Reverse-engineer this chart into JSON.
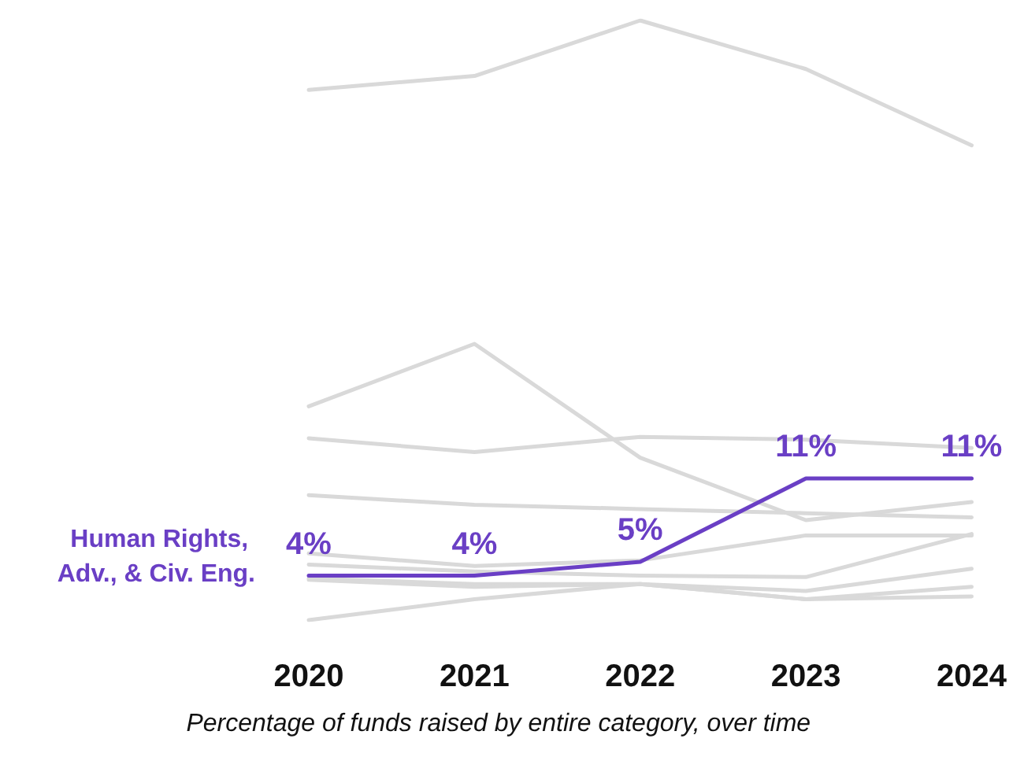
{
  "chart_data": {
    "type": "line",
    "xlabel": "Percentage of funds raised by entire category, over time",
    "categories": [
      "2020",
      "2021",
      "2022",
      "2023",
      "2024"
    ],
    "tick_labels": "x",
    "grid": false,
    "legend": false,
    "marker": "none",
    "line_style": "solid",
    "series": [
      {
        "color": "#d9d9d9",
        "values": [
          39,
          40,
          44,
          40.5,
          35
        ]
      },
      {
        "color": "#d9d9d9",
        "values": [
          16.2,
          20.7,
          12.5,
          8,
          9.3
        ]
      },
      {
        "color": "#d9d9d9",
        "values": [
          13.9,
          12.9,
          14,
          13.8,
          13.2
        ]
      },
      {
        "color": "#d9d9d9",
        "values": [
          9.8,
          9.1,
          8.8,
          8.5,
          8.2
        ]
      },
      {
        "color": "#d9d9d9",
        "values": [
          5.6,
          4.7,
          5.1,
          6.9,
          6.9
        ]
      },
      {
        "color": "#d9d9d9",
        "values": [
          4.8,
          4.3,
          4,
          3.9,
          7
        ]
      },
      {
        "color": "#d9d9d9",
        "values": [
          3.8,
          3.4,
          3.4,
          2.9,
          4.5
        ]
      },
      {
        "color": "#d9d9d9",
        "values": [
          3.7,
          3.2,
          3.4,
          2.3,
          3.2
        ]
      },
      {
        "color": "#d9d9d9",
        "values": [
          0.8,
          2.3,
          3.4,
          2.3,
          2.5
        ]
      },
      {
        "name": "Human Rights, Adv., & Civ. Eng.",
        "color": "#6a3fc5",
        "values": [
          4,
          4,
          5,
          11,
          11
        ],
        "value_labels": [
          "4%",
          "4%",
          "5%",
          "11%",
          "11%"
        ]
      }
    ]
  }
}
